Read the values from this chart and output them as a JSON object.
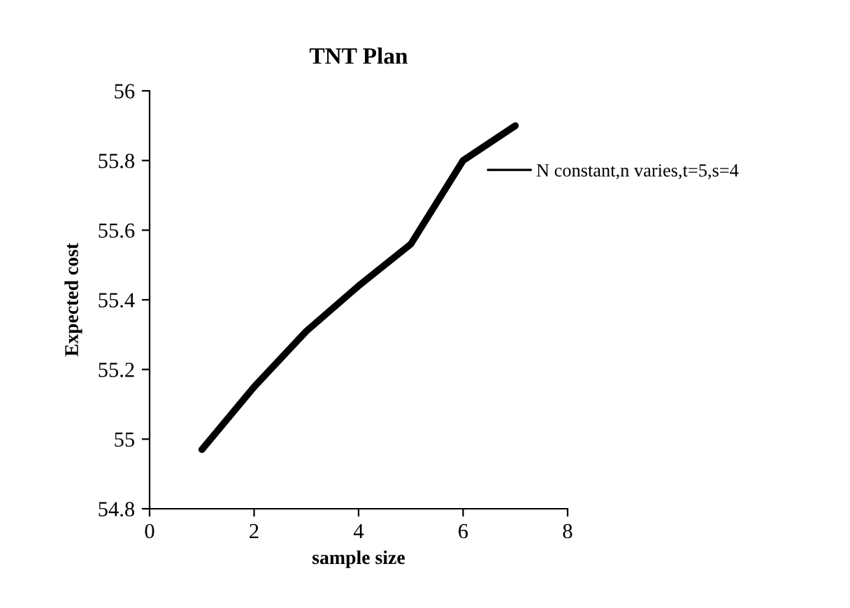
{
  "chart_data": {
    "type": "line",
    "title": "TNT Plan",
    "xlabel": "sample size",
    "ylabel": "Expected cost",
    "x": [
      1,
      2,
      3,
      4,
      5,
      6,
      7
    ],
    "series": [
      {
        "name": "N constant,n varies,t=5,s=4",
        "color": "#000000",
        "values": [
          54.97,
          55.15,
          55.31,
          55.44,
          55.56,
          55.8,
          55.9
        ]
      }
    ],
    "xlim": [
      0,
      8
    ],
    "xticks": [
      0,
      2,
      4,
      6,
      8
    ],
    "ylim": [
      54.8,
      56
    ],
    "yticks": [
      {
        "value": 54.8,
        "label": "54.8"
      },
      {
        "value": 55,
        "label": "55"
      },
      {
        "value": 55.2,
        "label": "55.2"
      },
      {
        "value": 55.4,
        "label": "55.4"
      },
      {
        "value": 55.6,
        "label": "55.6"
      },
      {
        "value": 55.8,
        "label": "55.8"
      },
      {
        "value": 56,
        "label": "56"
      }
    ],
    "grid": false,
    "legend": "right",
    "marker": "none",
    "line_style": "solid"
  }
}
